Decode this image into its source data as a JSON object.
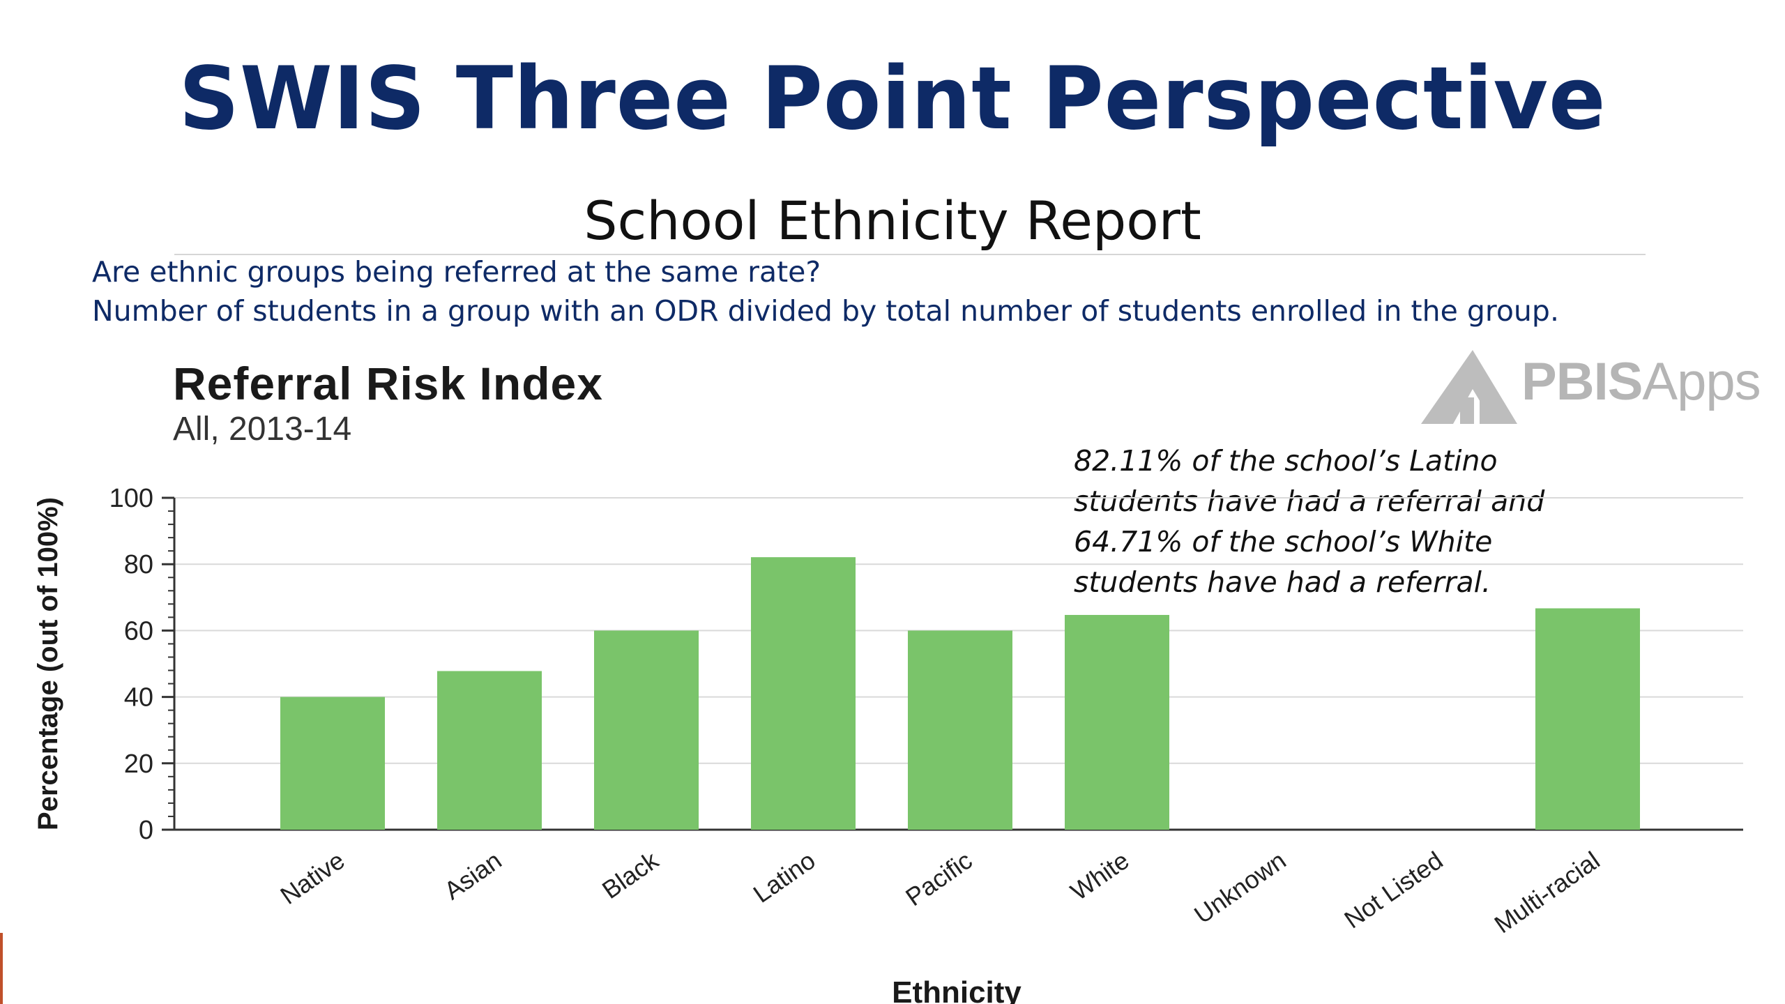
{
  "slide": {
    "title": "SWIS Three Point Perspective",
    "subtitle": "School Ethnicity Report",
    "questions": [
      "Are ethnic groups being referred at the same rate?",
      "Number of students in a group with an ODR divided by total number of students enrolled in the group."
    ],
    "annotation": "82.11% of the school’s Latino students have had a referral and 64.71% of the school’s White students have had a referral.",
    "logo": {
      "icon": "pbis-apps-logo-icon",
      "text_bold": "PBIS",
      "text_light": "Apps"
    }
  },
  "chart_data": {
    "type": "bar",
    "title": "Referral Risk Index",
    "subtitle": "All, 2013-14",
    "xlabel": "Ethnicity",
    "ylabel": "Percentage (out of 100%)",
    "categories": [
      "Native",
      "Asian",
      "Black",
      "Latino",
      "Pacific",
      "White",
      "Unknown",
      "Not Listed",
      "Multi-racial"
    ],
    "values": [
      40,
      47.8,
      60,
      82.11,
      60,
      64.71,
      0,
      0,
      66.7
    ],
    "ylim": [
      0,
      100
    ],
    "yticks": [
      "0",
      "20",
      "40",
      "60",
      "80",
      "100"
    ],
    "grid": true,
    "bar_color": "#7ac46a",
    "legend": "none"
  }
}
